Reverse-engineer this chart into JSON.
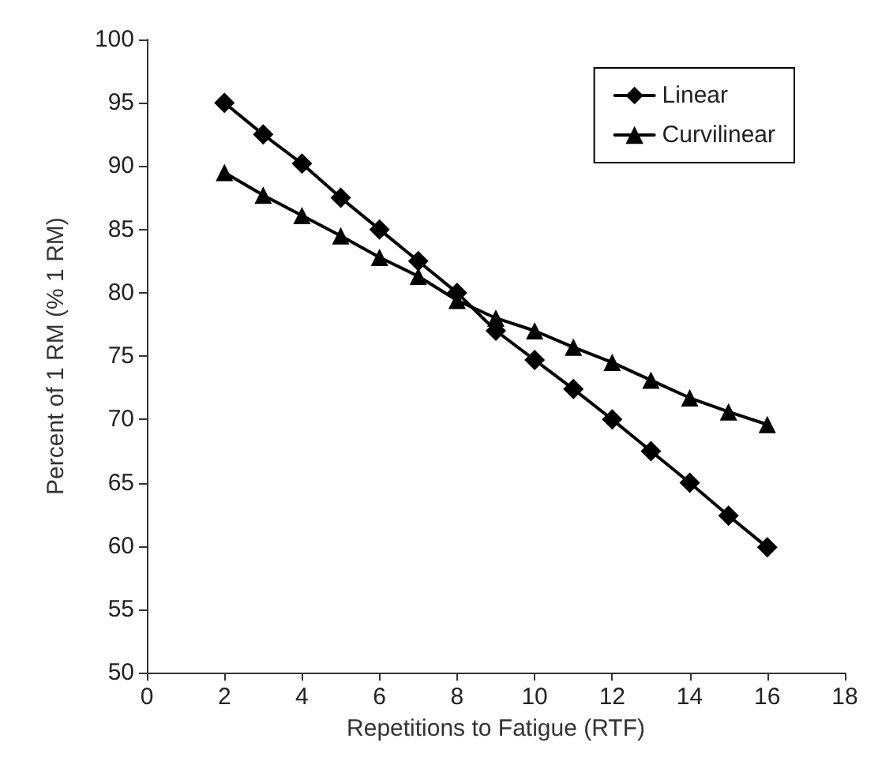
{
  "chart_data": {
    "type": "line",
    "xlabel": "Repetitions to Fatigue (RTF)",
    "ylabel": "Percent of 1 RM (% 1 RM)",
    "x": [
      2,
      3,
      4,
      5,
      6,
      7,
      8,
      9,
      10,
      11,
      12,
      13,
      14,
      15,
      16
    ],
    "series": [
      {
        "name": "Linear",
        "color": "#000000",
        "marker": "diamond",
        "values": [
          95,
          92.5,
          90.2,
          87.5,
          85,
          82.5,
          80,
          77,
          74.7,
          72.4,
          70,
          67.5,
          65,
          62.4,
          59.9
        ]
      },
      {
        "name": "Curvilinear",
        "color": "#000000",
        "marker": "triangle",
        "values": [
          89.5,
          87.7,
          86.1,
          84.5,
          82.8,
          81.3,
          79.4,
          78,
          77,
          75.7,
          74.5,
          73.1,
          71.7,
          70.6,
          69.6
        ]
      }
    ],
    "xlim": [
      0,
      18
    ],
    "xticks": [
      0,
      2,
      4,
      6,
      8,
      10,
      12,
      14,
      16,
      18
    ],
    "ylim": [
      50,
      100
    ],
    "yticks": [
      50,
      55,
      60,
      65,
      70,
      75,
      80,
      85,
      90,
      95,
      100
    ],
    "grid": false,
    "legend": "top right",
    "line_style": "solid"
  }
}
